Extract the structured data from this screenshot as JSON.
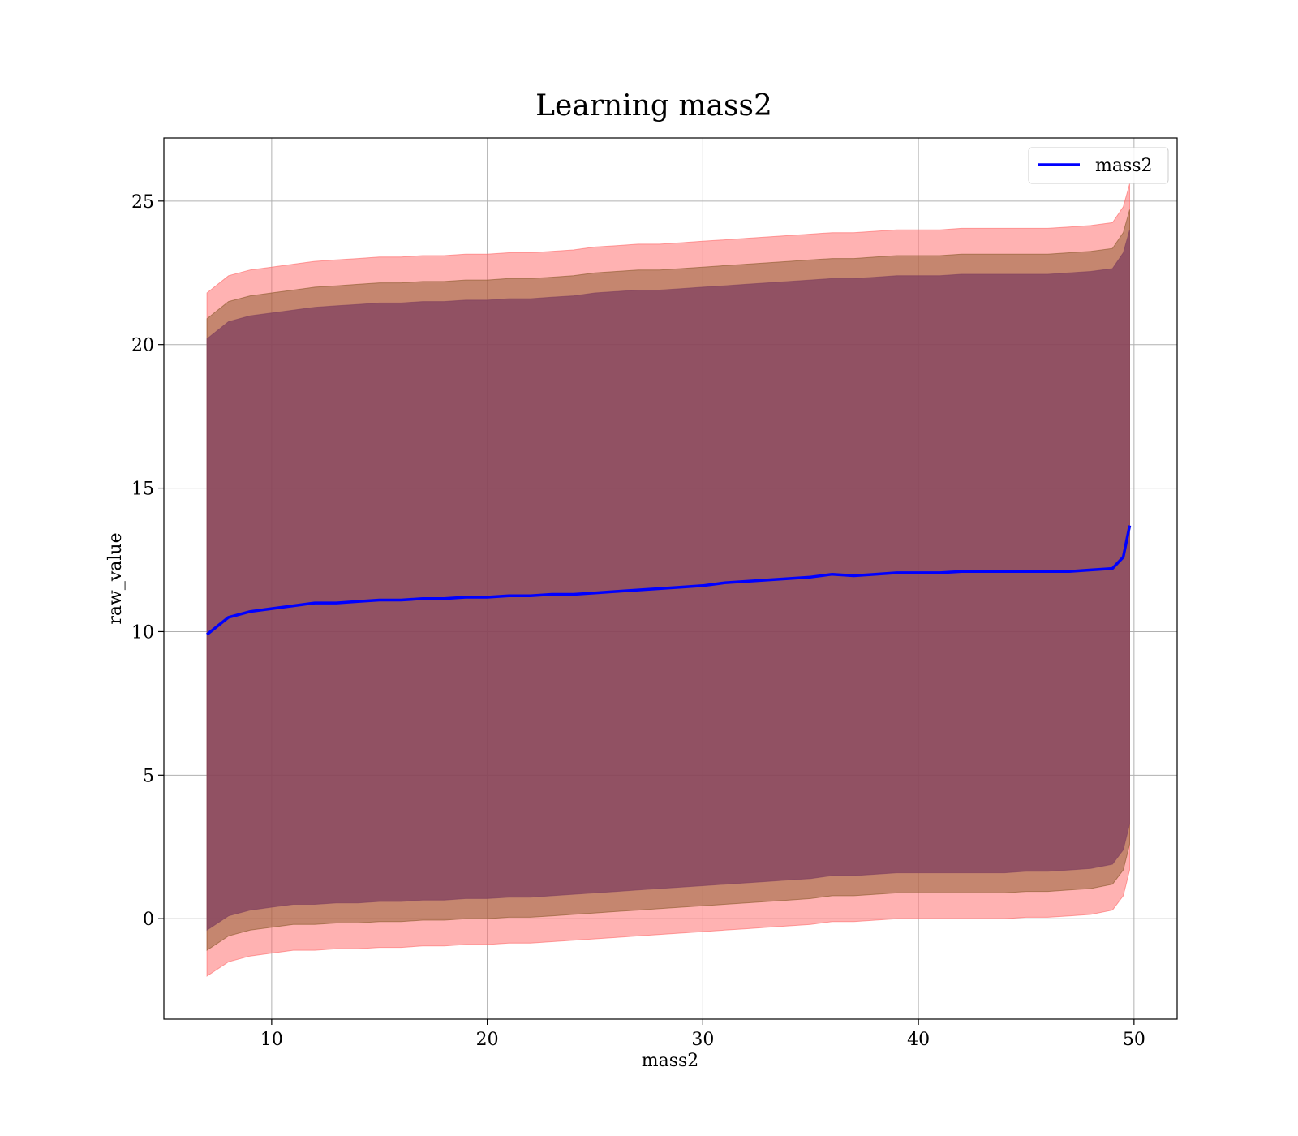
{
  "chart_data": {
    "type": "line",
    "title": "Learning mass2",
    "xlabel": "mass2",
    "ylabel": "raw_value",
    "xlim": [
      5,
      52
    ],
    "ylim": [
      -3.5,
      27.2
    ],
    "xticks": [
      10,
      20,
      30,
      40,
      50
    ],
    "yticks": [
      0,
      5,
      10,
      15,
      20,
      25
    ],
    "grid": true,
    "legend": {
      "position": "top-right",
      "entries": [
        "mass2"
      ]
    },
    "colors": {
      "line": "#0000ff",
      "band_outer": "#ff6666",
      "band_mid": "#8b5a2b",
      "band_inner": "#7f3f5f"
    },
    "series": [
      {
        "name": "mass2",
        "x": [
          7.0,
          8.0,
          9.0,
          10.0,
          11.0,
          12.0,
          13.0,
          14.0,
          15.0,
          16.0,
          17.0,
          18.0,
          19.0,
          20.0,
          21.0,
          22.0,
          23.0,
          24.0,
          25.0,
          26.0,
          27.0,
          28.0,
          29.0,
          30.0,
          31.0,
          32.0,
          33.0,
          34.0,
          35.0,
          36.0,
          37.0,
          38.0,
          39.0,
          40.0,
          41.0,
          42.0,
          43.0,
          44.0,
          45.0,
          46.0,
          47.0,
          48.0,
          49.0,
          49.5,
          49.8
        ],
        "y": [
          9.9,
          10.5,
          10.7,
          10.8,
          10.9,
          11.0,
          11.0,
          11.05,
          11.1,
          11.1,
          11.15,
          11.15,
          11.2,
          11.2,
          11.25,
          11.25,
          11.3,
          11.3,
          11.35,
          11.4,
          11.45,
          11.5,
          11.55,
          11.6,
          11.7,
          11.75,
          11.8,
          11.85,
          11.9,
          12.0,
          11.95,
          12.0,
          12.05,
          12.05,
          12.05,
          12.1,
          12.1,
          12.1,
          12.1,
          12.1,
          12.1,
          12.15,
          12.2,
          12.6,
          13.7
        ]
      }
    ],
    "bands": [
      {
        "level": "outer",
        "lower": [
          -2.0,
          -1.5,
          -1.3,
          -1.2,
          -1.1,
          -1.1,
          -1.05,
          -1.05,
          -1.0,
          -1.0,
          -0.95,
          -0.95,
          -0.9,
          -0.9,
          -0.85,
          -0.85,
          -0.8,
          -0.75,
          -0.7,
          -0.65,
          -0.6,
          -0.55,
          -0.5,
          -0.45,
          -0.4,
          -0.35,
          -0.3,
          -0.25,
          -0.2,
          -0.1,
          -0.1,
          -0.05,
          0.0,
          0.0,
          0.0,
          0.0,
          0.0,
          0.0,
          0.05,
          0.05,
          0.1,
          0.15,
          0.3,
          0.8,
          1.7
        ],
        "upper": [
          21.8,
          22.4,
          22.6,
          22.7,
          22.8,
          22.9,
          22.95,
          23.0,
          23.05,
          23.05,
          23.1,
          23.1,
          23.15,
          23.15,
          23.2,
          23.2,
          23.25,
          23.3,
          23.4,
          23.45,
          23.5,
          23.5,
          23.55,
          23.6,
          23.65,
          23.7,
          23.75,
          23.8,
          23.85,
          23.9,
          23.9,
          23.95,
          24.0,
          24.0,
          24.0,
          24.05,
          24.05,
          24.05,
          24.05,
          24.05,
          24.1,
          24.15,
          24.25,
          24.8,
          25.6
        ]
      },
      {
        "level": "mid",
        "lower": [
          -1.1,
          -0.6,
          -0.4,
          -0.3,
          -0.2,
          -0.2,
          -0.15,
          -0.15,
          -0.1,
          -0.1,
          -0.05,
          -0.05,
          0.0,
          0.0,
          0.05,
          0.05,
          0.1,
          0.15,
          0.2,
          0.25,
          0.3,
          0.35,
          0.4,
          0.45,
          0.5,
          0.55,
          0.6,
          0.65,
          0.7,
          0.8,
          0.8,
          0.85,
          0.9,
          0.9,
          0.9,
          0.9,
          0.9,
          0.9,
          0.95,
          0.95,
          1.0,
          1.05,
          1.2,
          1.7,
          2.6
        ],
        "upper": [
          20.9,
          21.5,
          21.7,
          21.8,
          21.9,
          22.0,
          22.05,
          22.1,
          22.15,
          22.15,
          22.2,
          22.2,
          22.25,
          22.25,
          22.3,
          22.3,
          22.35,
          22.4,
          22.5,
          22.55,
          22.6,
          22.6,
          22.65,
          22.7,
          22.75,
          22.8,
          22.85,
          22.9,
          22.95,
          23.0,
          23.0,
          23.05,
          23.1,
          23.1,
          23.1,
          23.15,
          23.15,
          23.15,
          23.15,
          23.15,
          23.2,
          23.25,
          23.35,
          23.9,
          24.7
        ]
      },
      {
        "level": "inner",
        "lower": [
          -0.4,
          0.1,
          0.3,
          0.4,
          0.5,
          0.5,
          0.55,
          0.55,
          0.6,
          0.6,
          0.65,
          0.65,
          0.7,
          0.7,
          0.75,
          0.75,
          0.8,
          0.85,
          0.9,
          0.95,
          1.0,
          1.05,
          1.1,
          1.15,
          1.2,
          1.25,
          1.3,
          1.35,
          1.4,
          1.5,
          1.5,
          1.55,
          1.6,
          1.6,
          1.6,
          1.6,
          1.6,
          1.6,
          1.65,
          1.65,
          1.7,
          1.75,
          1.9,
          2.4,
          3.3
        ],
        "upper": [
          20.2,
          20.8,
          21.0,
          21.1,
          21.2,
          21.3,
          21.35,
          21.4,
          21.45,
          21.45,
          21.5,
          21.5,
          21.55,
          21.55,
          21.6,
          21.6,
          21.65,
          21.7,
          21.8,
          21.85,
          21.9,
          21.9,
          21.95,
          22.0,
          22.05,
          22.1,
          22.15,
          22.2,
          22.25,
          22.3,
          22.3,
          22.35,
          22.4,
          22.4,
          22.4,
          22.45,
          22.45,
          22.45,
          22.45,
          22.45,
          22.5,
          22.55,
          22.65,
          23.2,
          24.0
        ]
      }
    ]
  }
}
